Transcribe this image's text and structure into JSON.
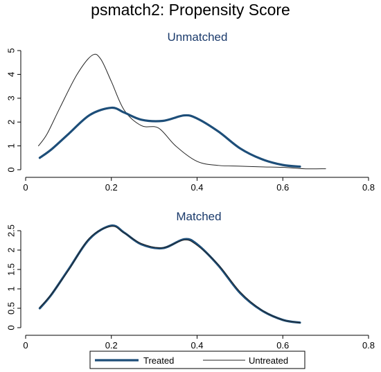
{
  "title": "psmatch2: Propensity Score",
  "colors": {
    "treated": "#1d4e79",
    "untreated": "#222222"
  },
  "legend": {
    "items": [
      "Treated",
      "Untreated"
    ],
    "position": "bottom"
  },
  "chart_data": [
    {
      "type": "line",
      "title": "Unmatched",
      "xlim": [
        0,
        0.8
      ],
      "ylim": [
        0,
        5
      ],
      "xticks": [
        "0",
        "0.2",
        "0.4",
        "0.6",
        "0.8"
      ],
      "yticks": [
        "0",
        "1",
        "2",
        "3",
        "4",
        "5"
      ],
      "series": [
        {
          "name": "Treated",
          "x": [
            0.033,
            0.06,
            0.1,
            0.15,
            0.2,
            0.23,
            0.27,
            0.32,
            0.37,
            0.4,
            0.45,
            0.5,
            0.55,
            0.6,
            0.64
          ],
          "y": [
            0.5,
            0.85,
            1.5,
            2.3,
            2.6,
            2.4,
            2.1,
            2.05,
            2.28,
            2.15,
            1.6,
            0.9,
            0.45,
            0.2,
            0.13
          ]
        },
        {
          "name": "Untreated",
          "x": [
            0.03,
            0.05,
            0.08,
            0.12,
            0.155,
            0.175,
            0.2,
            0.23,
            0.27,
            0.31,
            0.35,
            0.4,
            0.45,
            0.5,
            0.55,
            0.6,
            0.65,
            0.7
          ],
          "y": [
            1.0,
            1.5,
            2.6,
            4.0,
            4.8,
            4.65,
            3.7,
            2.5,
            1.85,
            1.75,
            1.0,
            0.35,
            0.18,
            0.15,
            0.12,
            0.1,
            0.04,
            0.04
          ]
        }
      ]
    },
    {
      "type": "line",
      "title": "Matched",
      "xlim": [
        0,
        0.8
      ],
      "ylim": [
        0,
        2.5
      ],
      "xticks": [
        "0",
        "0.2",
        "0.4",
        "0.6",
        "0.8"
      ],
      "yticks": [
        "0",
        "0.5",
        "1",
        "1.5",
        "2",
        "2.5"
      ],
      "series": [
        {
          "name": "Treated",
          "x": [
            0.033,
            0.06,
            0.1,
            0.15,
            0.2,
            0.23,
            0.27,
            0.32,
            0.37,
            0.4,
            0.45,
            0.5,
            0.55,
            0.6,
            0.64
          ],
          "y": [
            0.5,
            0.85,
            1.5,
            2.3,
            2.63,
            2.45,
            2.15,
            2.05,
            2.28,
            2.15,
            1.6,
            0.9,
            0.45,
            0.2,
            0.13
          ]
        },
        {
          "name": "Untreated",
          "x": [
            0.033,
            0.06,
            0.1,
            0.15,
            0.2,
            0.23,
            0.27,
            0.32,
            0.37,
            0.4,
            0.45,
            0.5,
            0.55,
            0.6,
            0.64
          ],
          "y": [
            0.52,
            0.86,
            1.48,
            2.32,
            2.61,
            2.44,
            2.17,
            2.06,
            2.26,
            2.12,
            1.62,
            0.93,
            0.46,
            0.2,
            0.13
          ]
        }
      ]
    }
  ]
}
